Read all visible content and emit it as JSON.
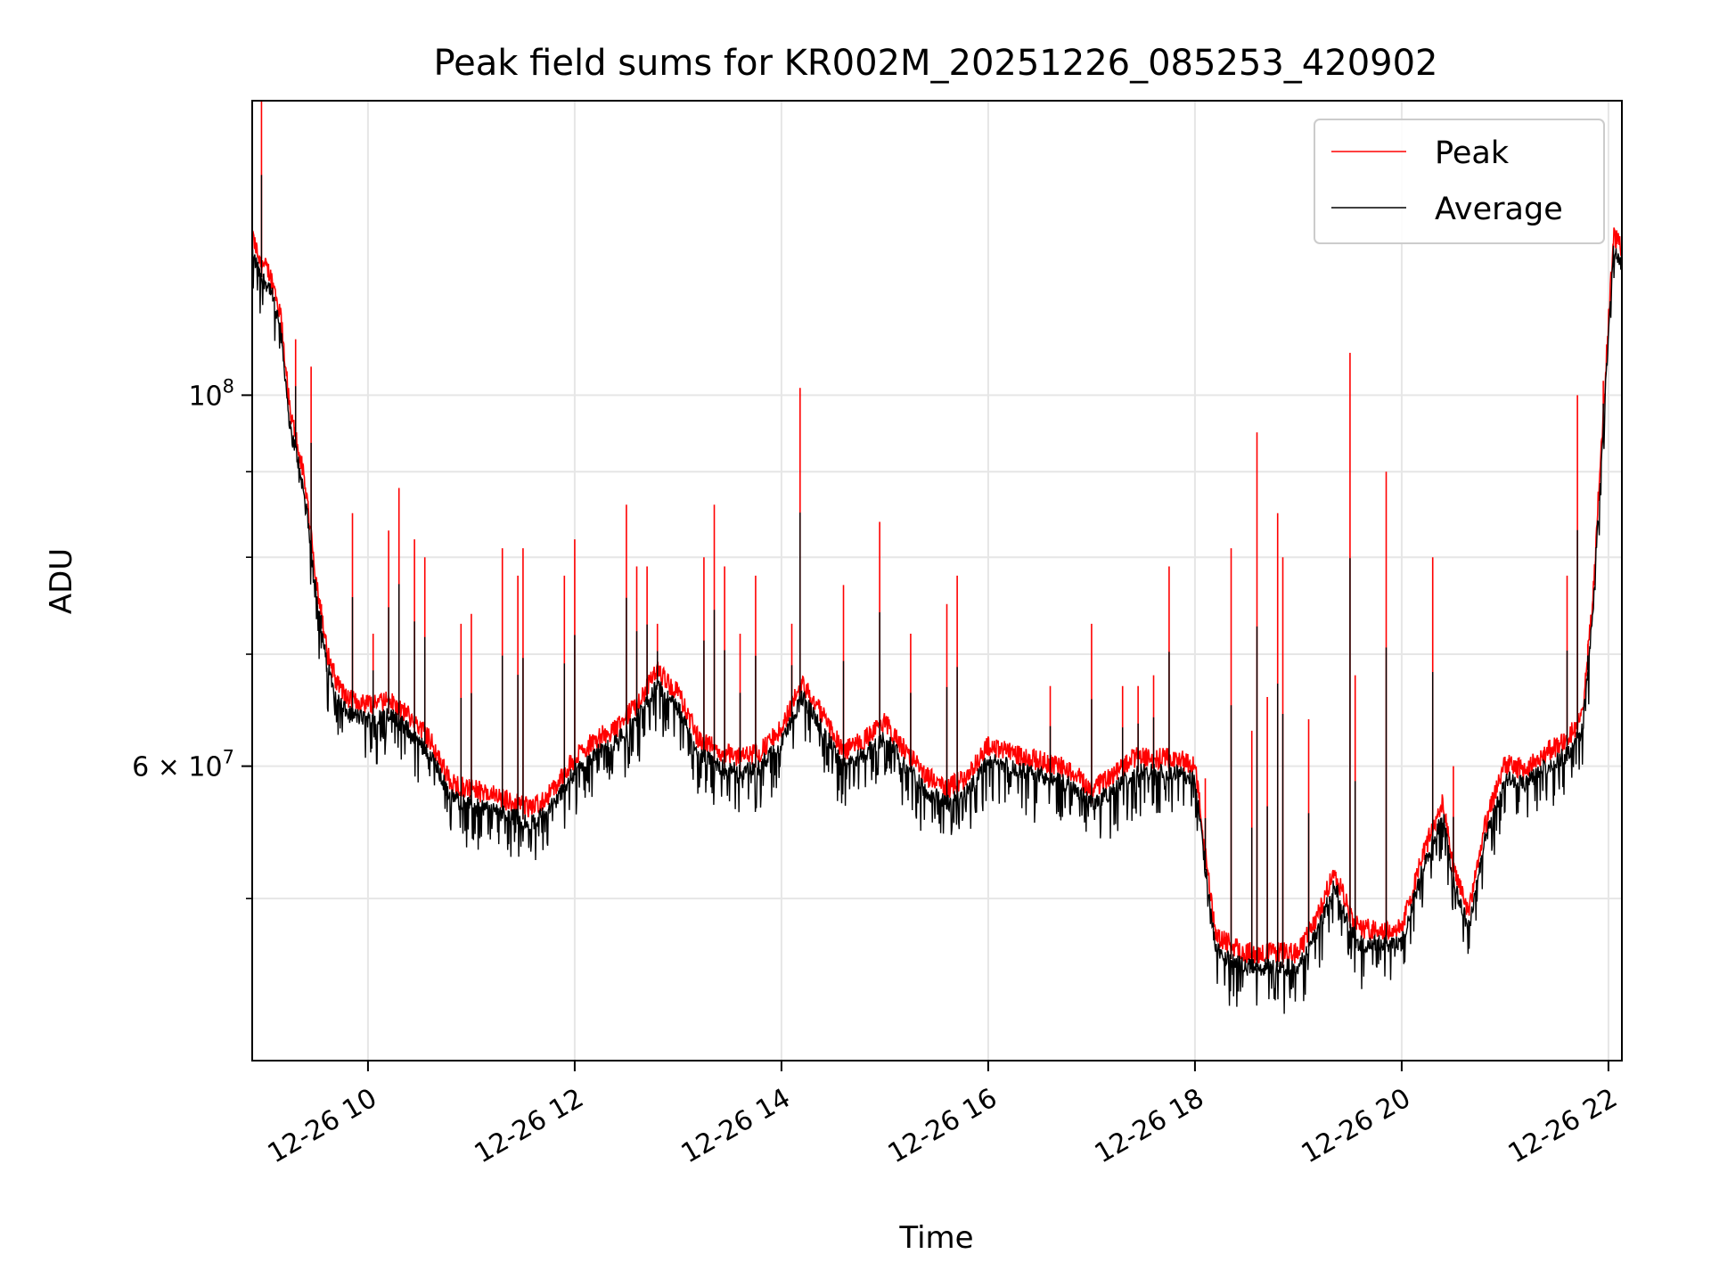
{
  "chart_data": {
    "type": "line",
    "title": "Peak field sums for KR002M_20251226_085253_420902",
    "xlabel": "Time",
    "ylabel": "ADU",
    "yscale": "log",
    "xlim": [
      8.88,
      22.13
    ],
    "ylim": [
      40000000,
      150000000
    ],
    "grid": true,
    "legend_position": "upper right",
    "x_ticks": [
      {
        "value": 10,
        "label": "12-26 10"
      },
      {
        "value": 12,
        "label": "12-26 12"
      },
      {
        "value": 14,
        "label": "12-26 14"
      },
      {
        "value": 16,
        "label": "12-26 16"
      },
      {
        "value": 18,
        "label": "12-26 18"
      },
      {
        "value": 20,
        "label": "12-26 20"
      },
      {
        "value": 22,
        "label": "12-26 22"
      }
    ],
    "y_major_ticks": [
      {
        "value": 100000000,
        "base": "10",
        "exp": "8",
        "prefix": ""
      },
      {
        "value": 60000000,
        "base": "10",
        "exp": "7",
        "prefix": "6 × "
      }
    ],
    "y_minor_ticks": [
      50000000,
      70000000,
      80000000,
      90000000
    ],
    "series": [
      {
        "name": "Peak",
        "color": "#ff0000"
      },
      {
        "name": "Average",
        "color": "#000000"
      }
    ],
    "baseline_profile": [
      [
        8.88,
        122
      ],
      [
        8.95,
        118
      ],
      [
        9.05,
        116
      ],
      [
        9.15,
        110
      ],
      [
        9.25,
        95
      ],
      [
        9.3,
        93
      ],
      [
        9.4,
        86
      ],
      [
        9.5,
        76
      ],
      [
        9.6,
        69
      ],
      [
        9.7,
        66
      ],
      [
        9.8,
        64.5
      ],
      [
        10.0,
        64
      ],
      [
        10.2,
        64.5
      ],
      [
        10.4,
        63
      ],
      [
        10.6,
        61
      ],
      [
        10.8,
        57.5
      ],
      [
        11.0,
        57
      ],
      [
        11.4,
        56
      ],
      [
        11.6,
        55.5
      ],
      [
        11.8,
        57
      ],
      [
        12.0,
        59.5
      ],
      [
        12.2,
        61
      ],
      [
        12.4,
        62
      ],
      [
        12.6,
        64
      ],
      [
        12.8,
        67
      ],
      [
        13.0,
        65
      ],
      [
        13.2,
        61
      ],
      [
        13.4,
        60
      ],
      [
        13.6,
        59.5
      ],
      [
        13.8,
        60
      ],
      [
        14.0,
        62
      ],
      [
        14.2,
        66
      ],
      [
        14.4,
        63
      ],
      [
        14.6,
        60
      ],
      [
        14.8,
        61
      ],
      [
        15.0,
        62.5
      ],
      [
        15.2,
        60
      ],
      [
        15.4,
        58
      ],
      [
        15.6,
        57
      ],
      [
        15.8,
        58
      ],
      [
        16.0,
        60.5
      ],
      [
        16.4,
        59.5
      ],
      [
        16.8,
        58.5
      ],
      [
        17.0,
        57
      ],
      [
        17.2,
        58
      ],
      [
        17.4,
        59.5
      ],
      [
        17.8,
        59.5
      ],
      [
        18.0,
        59
      ],
      [
        18.1,
        52
      ],
      [
        18.2,
        46.5
      ],
      [
        18.5,
        45.5
      ],
      [
        19.0,
        45.5
      ],
      [
        19.2,
        48
      ],
      [
        19.35,
        51
      ],
      [
        19.5,
        48
      ],
      [
        19.6,
        47
      ],
      [
        20.0,
        47
      ],
      [
        20.2,
        52
      ],
      [
        20.4,
        56
      ],
      [
        20.5,
        51
      ],
      [
        20.65,
        48
      ],
      [
        20.8,
        54
      ],
      [
        21.0,
        59
      ],
      [
        21.2,
        58.5
      ],
      [
        21.4,
        60
      ],
      [
        21.6,
        61
      ],
      [
        21.75,
        63
      ],
      [
        21.85,
        74
      ],
      [
        21.95,
        95
      ],
      [
        22.05,
        122
      ],
      [
        22.13,
        120
      ]
    ],
    "peak_spikes": [
      [
        8.97,
        150
      ],
      [
        9.3,
        108
      ],
      [
        9.45,
        104
      ],
      [
        9.55,
        75
      ],
      [
        9.85,
        85
      ],
      [
        10.05,
        72
      ],
      [
        10.2,
        83
      ],
      [
        10.3,
        88
      ],
      [
        10.45,
        82
      ],
      [
        10.55,
        80
      ],
      [
        10.9,
        73
      ],
      [
        11.0,
        74
      ],
      [
        11.3,
        81
      ],
      [
        11.45,
        78
      ],
      [
        11.5,
        81
      ],
      [
        11.9,
        78
      ],
      [
        12.0,
        82
      ],
      [
        12.5,
        86
      ],
      [
        12.6,
        79
      ],
      [
        12.7,
        79
      ],
      [
        12.8,
        73
      ],
      [
        13.25,
        80
      ],
      [
        13.35,
        86
      ],
      [
        13.45,
        79
      ],
      [
        13.6,
        72
      ],
      [
        13.75,
        78
      ],
      [
        14.1,
        73
      ],
      [
        14.18,
        101
      ],
      [
        14.6,
        77
      ],
      [
        14.95,
        84
      ],
      [
        15.25,
        72
      ],
      [
        15.6,
        75
      ],
      [
        15.7,
        78
      ],
      [
        16.6,
        67
      ],
      [
        17.0,
        73
      ],
      [
        17.3,
        67
      ],
      [
        17.45,
        67
      ],
      [
        17.6,
        68
      ],
      [
        17.75,
        79
      ],
      [
        18.1,
        59
      ],
      [
        18.35,
        81
      ],
      [
        18.55,
        63
      ],
      [
        18.6,
        95
      ],
      [
        18.7,
        66
      ],
      [
        18.8,
        85
      ],
      [
        18.85,
        80
      ],
      [
        19.1,
        64
      ],
      [
        19.5,
        106
      ],
      [
        19.55,
        68
      ],
      [
        19.85,
        90
      ],
      [
        20.3,
        80
      ],
      [
        20.5,
        60
      ],
      [
        21.6,
        78
      ],
      [
        21.7,
        100
      ],
      [
        21.8,
        71
      ],
      [
        21.95,
        102
      ]
    ]
  }
}
